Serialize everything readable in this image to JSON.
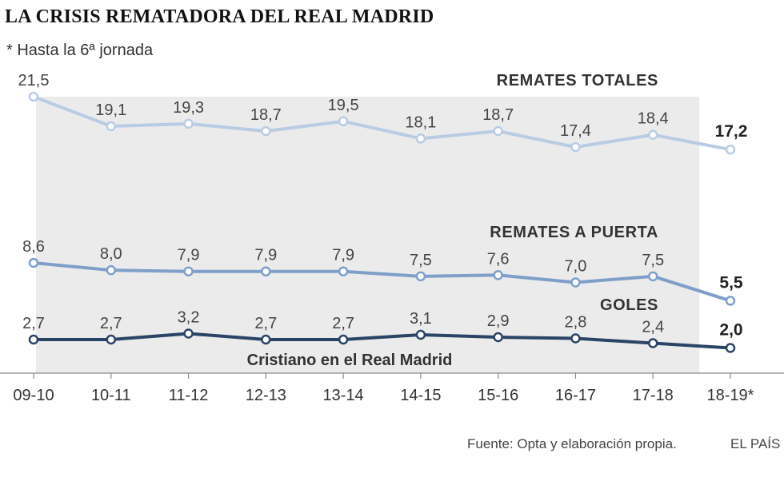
{
  "title": "LA CRISIS REMATADORA DEL REAL MADRID",
  "subtitle": "* Hasta la 6ª jornada",
  "source": "Fuente: Opta y elaboración propia.",
  "brand": "EL PAÍS",
  "shaded_region_label": "Cristiano en el Real Madrid",
  "chart_data": {
    "type": "line",
    "title": "LA CRISIS REMATADORA DEL REAL MADRID",
    "subtitle": "* Hasta la 6ª jornada",
    "categories": [
      "09-10",
      "10-11",
      "11-12",
      "12-13",
      "13-14",
      "14-15",
      "15-16",
      "16-17",
      "17-18",
      "18-19*"
    ],
    "shaded_region": {
      "label": "Cristiano en el Real Madrid",
      "from": "09-10",
      "to": "17-18"
    },
    "series": [
      {
        "name": "REMATES TOTALES",
        "values": [
          21.5,
          19.1,
          19.3,
          18.7,
          19.5,
          18.1,
          18.7,
          17.4,
          18.4,
          17.2
        ],
        "labels": [
          "21,5",
          "19,1",
          "19,3",
          "18,7",
          "19,5",
          "18,1",
          "18,7",
          "17,4",
          "18,4",
          "17,2"
        ],
        "color": "#b9cce4"
      },
      {
        "name": "REMATES A PUERTA",
        "values": [
          8.6,
          8.0,
          7.9,
          7.9,
          7.9,
          7.5,
          7.6,
          7.0,
          7.5,
          5.5
        ],
        "labels": [
          "8,6",
          "8,0",
          "7,9",
          "7,9",
          "7,9",
          "7,5",
          "7,6",
          "7,0",
          "7,5",
          "5,5"
        ],
        "color": "#7f9fc9"
      },
      {
        "name": "GOLES",
        "values": [
          2.7,
          2.7,
          3.2,
          2.7,
          2.7,
          3.1,
          2.9,
          2.8,
          2.4,
          2.0
        ],
        "labels": [
          "2,7",
          "2,7",
          "3,2",
          "2,7",
          "2,7",
          "3,1",
          "2,9",
          "2,8",
          "2,4",
          "2,0"
        ],
        "color": "#2a4466"
      }
    ],
    "grid": false,
    "legend": "inline labels"
  }
}
